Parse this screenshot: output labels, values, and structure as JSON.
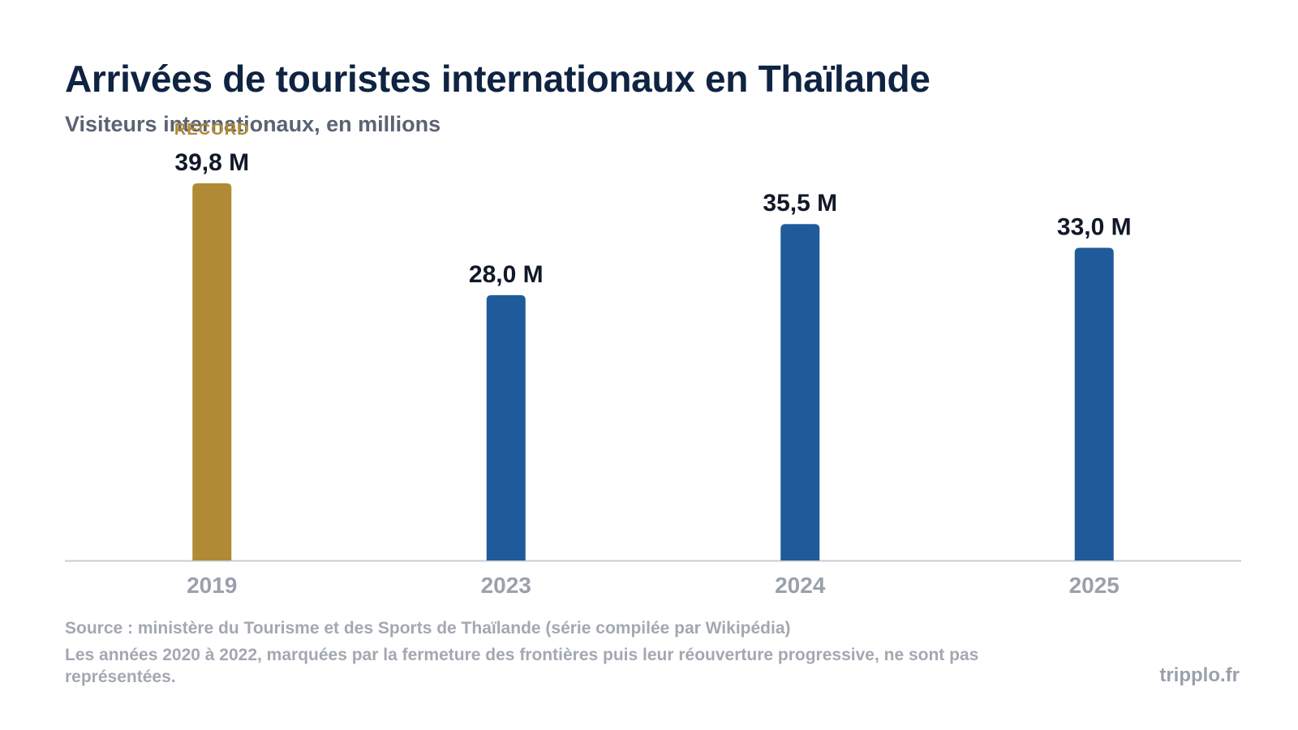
{
  "header": {
    "title": "Arrivées de touristes internationaux en Thaïlande",
    "subtitle": "Visiteurs internationaux, en millions"
  },
  "chart_data": {
    "type": "bar",
    "categories": [
      "2019",
      "2023",
      "2024",
      "2025"
    ],
    "values": [
      39.8,
      28.0,
      35.5,
      33.0
    ],
    "value_labels": [
      "39,8 M",
      "28,0 M",
      "35,5 M",
      "33,0 M"
    ],
    "title": "Arrivées de touristes internationaux en Thaïlande",
    "subtitle": "Visiteurs internationaux, en millions",
    "ylim": [
      0,
      39.8
    ],
    "grid": false,
    "annotations": [
      {
        "category": "2019",
        "text": "RECORD"
      }
    ],
    "colors": {
      "highlight": "#b08a34",
      "default": "#1f5b9a",
      "axis": "#c9ccd2"
    },
    "highlight_category": "2019"
  },
  "footer": {
    "source": "Source : ministère du Tourisme et des Sports de Thaïlande (série compilée par Wikipédia)",
    "note": "Les années 2020 à 2022, marquées par la fermeture des frontières puis leur réouverture progressive, ne sont pas représentées.",
    "brand": "tripplo.fr"
  }
}
